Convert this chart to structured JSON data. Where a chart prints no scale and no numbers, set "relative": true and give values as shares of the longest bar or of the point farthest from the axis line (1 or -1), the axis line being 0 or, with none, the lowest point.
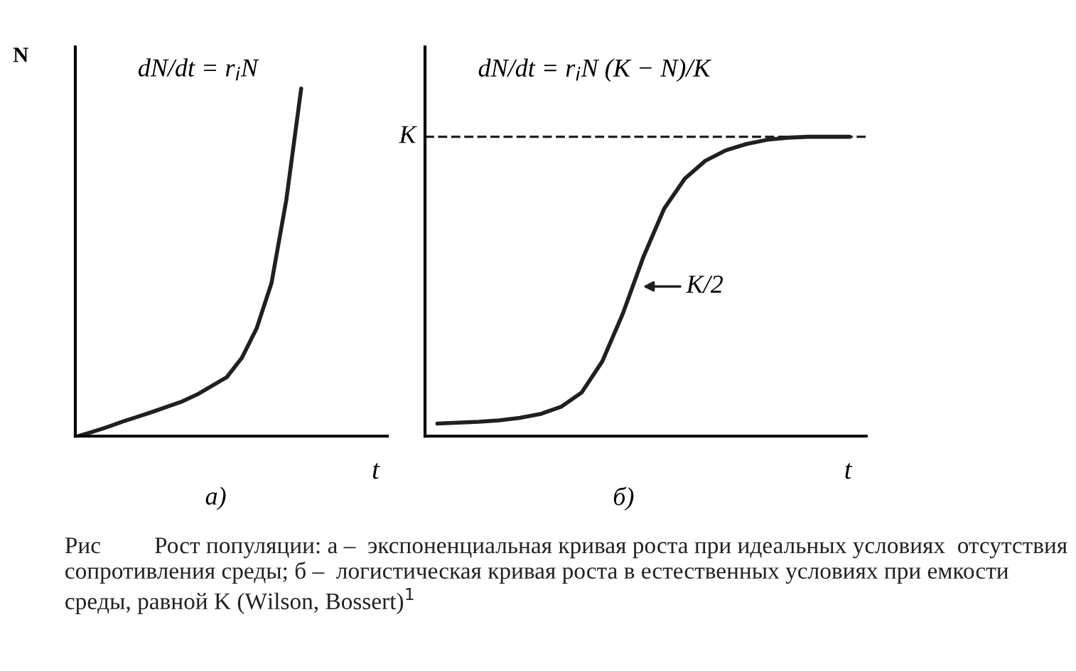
{
  "chart_data": [
    {
      "type": "line",
      "relative": true,
      "title": "dN/dt = r$_{i}$N",
      "ylabel": "N",
      "xlabel": "t",
      "tick_labels": false,
      "line_style": "solid",
      "marker": "none",
      "categories": [
        null,
        null,
        null,
        null,
        null,
        null,
        null,
        null,
        null,
        null,
        null,
        null,
        null,
        null,
        null,
        null,
        null,
        null,
        null,
        null,
        null
      ],
      "series": [
        {
          "color": "#231f20",
          "values": [
            0,
            0.013,
            0.027,
            0.042,
            0.056,
            0.07,
            0.085,
            0.1,
            0.12,
            0.145,
            0.17,
            0.225,
            0.31,
            0.44,
            0.68,
            1.0,
            null,
            null,
            null,
            null,
            null
          ]
        }
      ],
      "annotations": [
        "а)"
      ]
    },
    {
      "type": "line",
      "relative": true,
      "title": "dN/dt = r$_{i}$N (K − N)/K",
      "xlabel": "t",
      "tick_labels": false,
      "line_style": "solid",
      "marker": "none",
      "categories": [
        null,
        null,
        null,
        null,
        null,
        null,
        null,
        null,
        null,
        null,
        null,
        null,
        null,
        null,
        null,
        null,
        null,
        null,
        null,
        null,
        null
      ],
      "series": [
        {
          "color": "#231f20",
          "values": [
            0.042,
            0.045,
            0.048,
            0.053,
            0.061,
            0.074,
            0.098,
            0.146,
            0.25,
            0.41,
            0.6,
            0.76,
            0.86,
            0.92,
            0.955,
            0.976,
            0.99,
            0.997,
            1,
            1,
            1
          ]
        }
      ],
      "ref_lines": [
        {
          "axis": "y",
          "value": 1,
          "label": "K",
          "color": "#231f20",
          "line_style": "dashed"
        }
      ],
      "annotations": [
        "K/2",
        "б)",
        "Рис         Рост популяции: а –  экспоненциальная кривая роста при идеальных условиях  отсутствия сопротивления среды; б –  логистическая кривая роста в естественных условиях при емкости среды, равной K (Wilson, Bossert)$^{1}$"
      ]
    }
  ]
}
